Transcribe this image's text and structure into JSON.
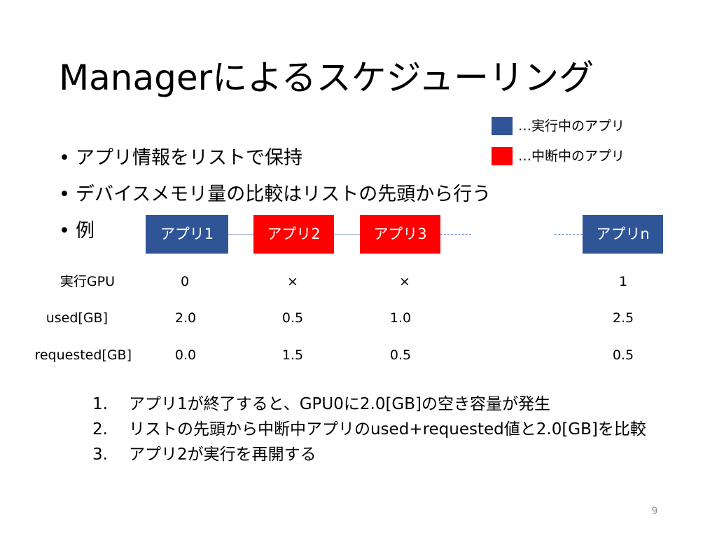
{
  "slide": {
    "title": "Managerによるスケジューリング",
    "page_number": "9"
  },
  "legend": [
    {
      "label": "…実行中のアプリ",
      "color": "#2f5597"
    },
    {
      "label": "…中断中のアプリ",
      "color": "#ff0000"
    }
  ],
  "bullets": [
    {
      "marker": "•",
      "text": "アプリ情報をリストで保持"
    },
    {
      "marker": "•",
      "text": "デバイスメモリ量の比較はリストの先頭から行う"
    },
    {
      "marker": "•",
      "text": "例"
    }
  ],
  "apps": [
    {
      "label": "アプリ1",
      "state": "running",
      "color": "#2f5597",
      "gpu": "0",
      "used": "2.0",
      "requested": "0.0"
    },
    {
      "label": "アプリ2",
      "state": "suspended",
      "color": "#ff0000",
      "gpu": "×",
      "used": "0.5",
      "requested": "1.5"
    },
    {
      "label": "アプリ3",
      "state": "suspended",
      "color": "#ff0000",
      "gpu": "×",
      "used": "1.0",
      "requested": "0.5"
    },
    {
      "label": "アプリn",
      "state": "running",
      "color": "#2f5597",
      "gpu": "1",
      "used": "2.5",
      "requested": "0.5"
    }
  ],
  "row_labels": {
    "gpu": "実行GPU",
    "used": "used[GB]",
    "requested": "requested[GB]"
  },
  "steps": [
    {
      "number": "1.",
      "text": "アプリ1が終了すると、GPU0に2.0[GB]の空き容量が発生"
    },
    {
      "number": "2.",
      "text": "リストの先頭から中断中アプリのused+requested値と2.0[GB]を比較"
    },
    {
      "number": "3.",
      "text": "アプリ2が実行を再開する"
    }
  ]
}
